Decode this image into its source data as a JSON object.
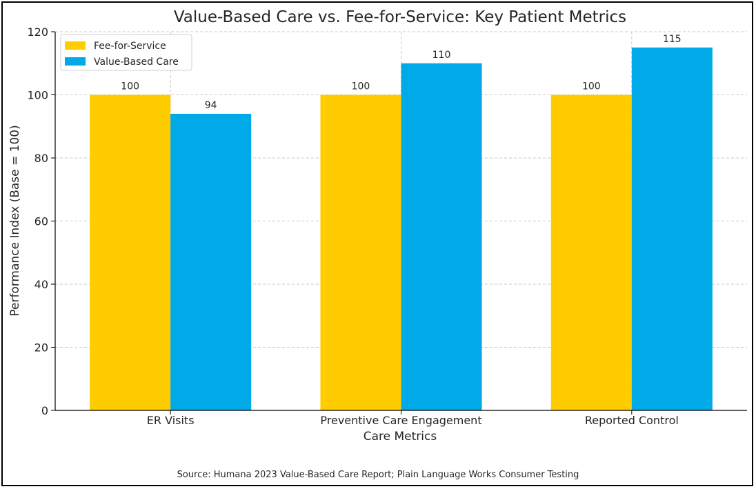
{
  "chart_data": {
    "type": "bar",
    "title": "Value-Based Care vs. Fee-for-Service: Key Patient Metrics",
    "xlabel": "Care Metrics",
    "ylabel": "Performance Index (Base = 100)",
    "categories": [
      "ER Visits",
      "Preventive Care Engagement",
      "Reported Control"
    ],
    "series": [
      {
        "name": "Fee-for-Service",
        "color": "#FFCC00",
        "values": [
          100,
          100,
          100
        ]
      },
      {
        "name": "Value-Based Care",
        "color": "#00A9E8",
        "values": [
          94,
          110,
          115
        ]
      }
    ],
    "ylim": [
      0,
      120
    ],
    "yticks": [
      0,
      20,
      40,
      60,
      80,
      100,
      120
    ],
    "grid": true,
    "legend_position": "top-left"
  },
  "source_note": "Source: Humana 2023 Value-Based Care Report; Plain Language Works Consumer Testing"
}
